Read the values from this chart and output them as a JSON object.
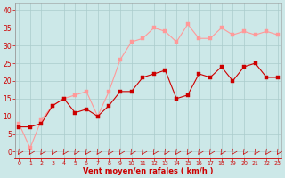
{
  "x": [
    0,
    1,
    2,
    3,
    4,
    5,
    6,
    7,
    8,
    9,
    10,
    11,
    12,
    13,
    14,
    15,
    16,
    17,
    18,
    19,
    20,
    21,
    22,
    23
  ],
  "wind_mean": [
    7,
    7,
    8,
    13,
    15,
    11,
    12,
    10,
    13,
    17,
    17,
    21,
    22,
    23,
    15,
    16,
    22,
    21,
    24,
    20,
    24,
    25,
    21,
    21
  ],
  "wind_gust": [
    8,
    1,
    9,
    13,
    15,
    16,
    17,
    10,
    17,
    26,
    31,
    32,
    35,
    34,
    31,
    36,
    32,
    32,
    35,
    33,
    34,
    33,
    34,
    33
  ],
  "mean_color": "#cc0000",
  "gust_color": "#ff9999",
  "bg_color": "#cce8e8",
  "grid_color": "#aacccc",
  "xlabel": "Vent moyen/en rafales ( km/h )",
  "xlabel_color": "#cc0000",
  "yticks": [
    0,
    5,
    10,
    15,
    20,
    25,
    30,
    35,
    40
  ],
  "ylim": [
    -2,
    42
  ],
  "xlim": [
    -0.3,
    23.3
  ],
  "tick_color": "#cc0000",
  "axis_color": "#999999",
  "marker_size": 2.5
}
